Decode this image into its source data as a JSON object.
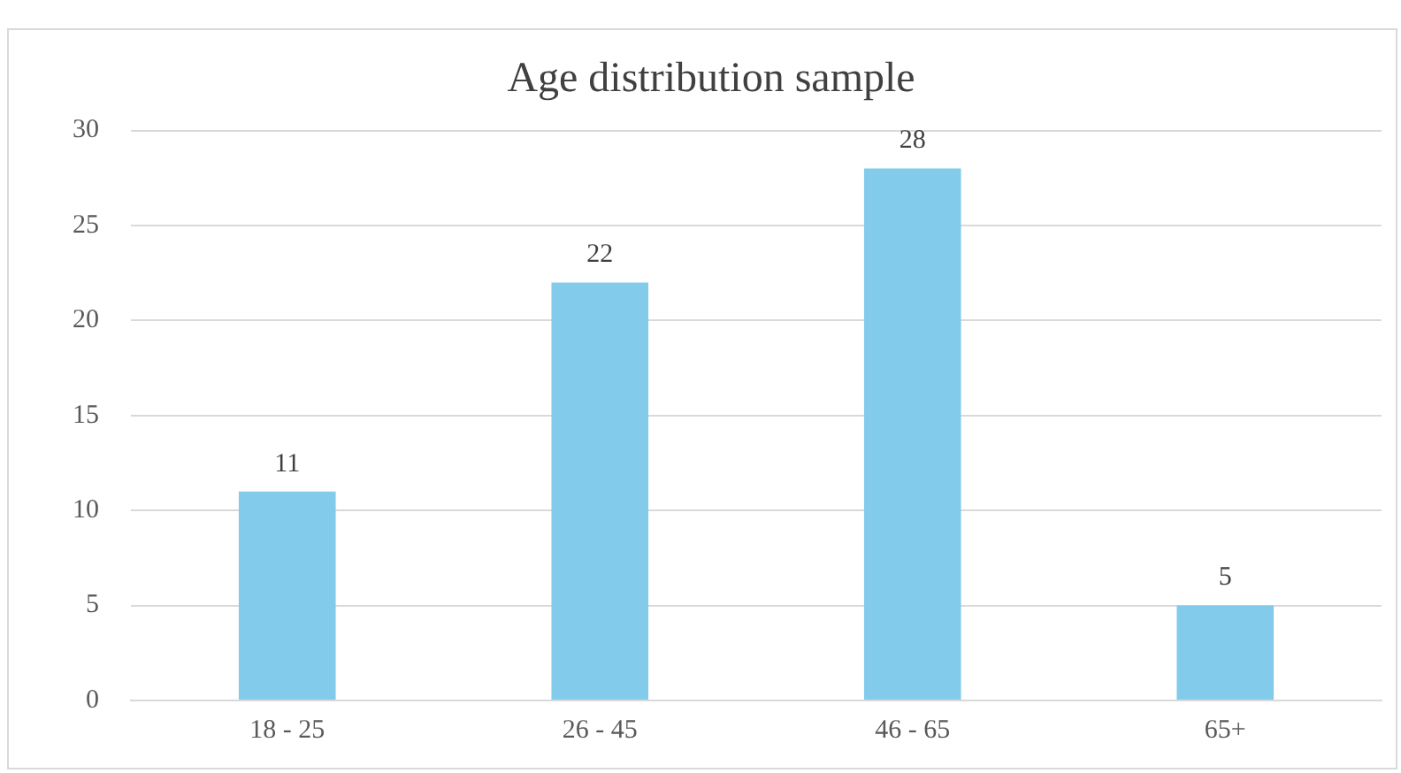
{
  "chart_data": {
    "type": "bar",
    "title": "Age distribution sample",
    "categories": [
      "18 - 25",
      "26 - 45",
      "46 - 65",
      "65+"
    ],
    "values": [
      11,
      22,
      28,
      5
    ],
    "color": "#82cbeb",
    "ylim": [
      0,
      30
    ],
    "yticks": [
      0,
      5,
      10,
      15,
      20,
      25,
      30
    ],
    "grid": "y",
    "legend": false,
    "data_labels": true
  }
}
